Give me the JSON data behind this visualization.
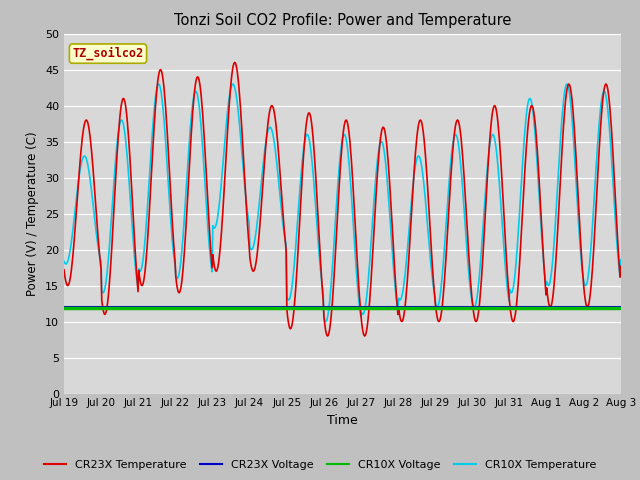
{
  "title": "Tonzi Soil CO2 Profile: Power and Temperature",
  "xlabel": "Time",
  "ylabel": "Power (V) / Temperature (C)",
  "ylim": [
    0,
    50
  ],
  "yticks": [
    0,
    5,
    10,
    15,
    20,
    25,
    30,
    35,
    40,
    45,
    50
  ],
  "fig_bg_color": "#c0c0c0",
  "plot_bg_color": "#d8d8d8",
  "annotation_text": "TZ_soilco2",
  "annotation_bg": "#ffffcc",
  "annotation_border": "#aaaa00",
  "cr23x_temp_color": "#dd0000",
  "cr23x_volt_color": "#0000cc",
  "cr10x_volt_color": "#00bb00",
  "cr10x_temp_color": "#00ccee",
  "cr23x_volt_value": 12.05,
  "cr10x_volt_value": 11.95,
  "legend_labels": [
    "CR23X Temperature",
    "CR23X Voltage",
    "CR10X Voltage",
    "CR10X Temperature"
  ],
  "legend_colors": [
    "#dd0000",
    "#0000cc",
    "#00bb00",
    "#00ccee"
  ],
  "xtick_labels": [
    "Jul 19",
    "Jul 20",
    "Jul 21",
    "Jul 22",
    "Jul 23",
    "Jul 24",
    "Jul 25",
    "Jul 26",
    "Jul 27",
    "Jul 28",
    "Jul 29",
    "Jul 30",
    "Jul 31",
    "Aug 1",
    "Aug 2",
    "Aug 3"
  ],
  "cr23x_day_maxes": [
    38,
    41,
    45,
    44,
    46,
    40,
    39,
    38,
    37,
    38,
    38,
    40,
    40,
    43,
    43,
    43
  ],
  "cr23x_day_mins": [
    15,
    11,
    15,
    14,
    17,
    17,
    9,
    8,
    8,
    10,
    10,
    10,
    10,
    12,
    12,
    15
  ],
  "cr10x_day_maxes": [
    33,
    38,
    43,
    42,
    43,
    37,
    36,
    36,
    35,
    33,
    36,
    36,
    41,
    43,
    42,
    42
  ],
  "cr10x_day_mins": [
    18,
    14,
    17,
    16,
    23,
    20,
    13,
    10,
    11,
    13,
    12,
    12,
    14,
    15,
    15,
    18
  ]
}
